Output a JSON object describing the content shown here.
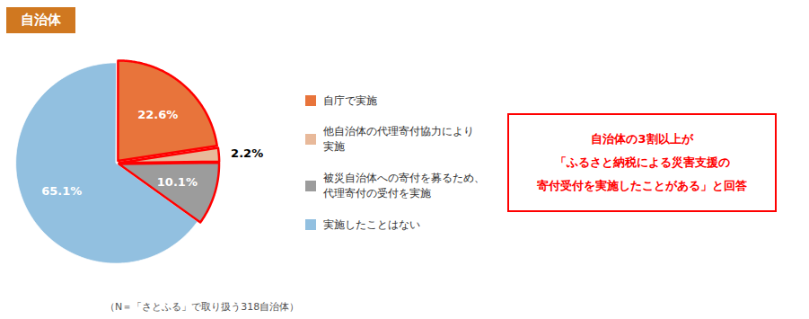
{
  "chart_data": {
    "type": "pie",
    "title": "自治体",
    "categories": [
      "自庁で実施",
      "他自治体の代理寄付協力により\n実施",
      "被災自治体への寄付を募るため、\n代理寄付の受付を実施",
      "実施したことはない"
    ],
    "values": [
      22.6,
      2.2,
      10.1,
      65.1
    ],
    "value_labels": [
      "22.6%",
      "2.2%",
      "10.1%",
      "65.1%"
    ],
    "colors": [
      "#E8743B",
      "#E8B99A",
      "#9C9C9C",
      "#92C0E0"
    ],
    "data_labels": true,
    "legend": "right",
    "annotations": [
      "自治体の3割以上が\n「ふるさと納税による災害支援の\n寄付受付を実施したことがある」と回答"
    ],
    "caption": "（N＝「さとふる」で取り扱う318自治体）"
  }
}
